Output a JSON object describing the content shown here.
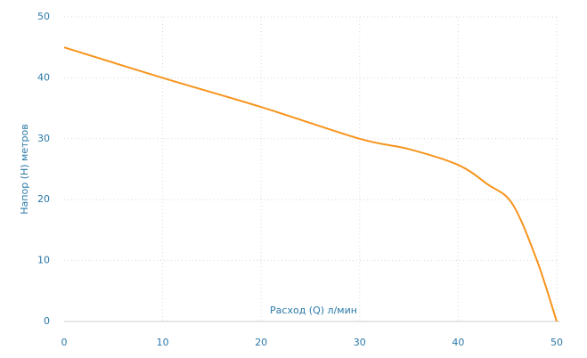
{
  "chart_data": {
    "type": "line",
    "xlabel": "Расход (Q) л/мин",
    "ylabel": "Напор (H) метров",
    "x": [
      0,
      10,
      20,
      30,
      35,
      40,
      43,
      45.5,
      48,
      50
    ],
    "series": [
      {
        "color": "#f7941d",
        "values": [
          45,
          40,
          35.2,
          30,
          28.3,
          25.7,
          22.5,
          19.3,
          10,
          0
        ]
      }
    ],
    "xlim": [
      0,
      50
    ],
    "xticks": [
      0,
      10,
      20,
      30,
      40,
      50
    ],
    "ylim": [
      0,
      50
    ],
    "yticks": [
      0,
      10,
      20,
      30,
      40,
      50
    ],
    "grid": true
  }
}
